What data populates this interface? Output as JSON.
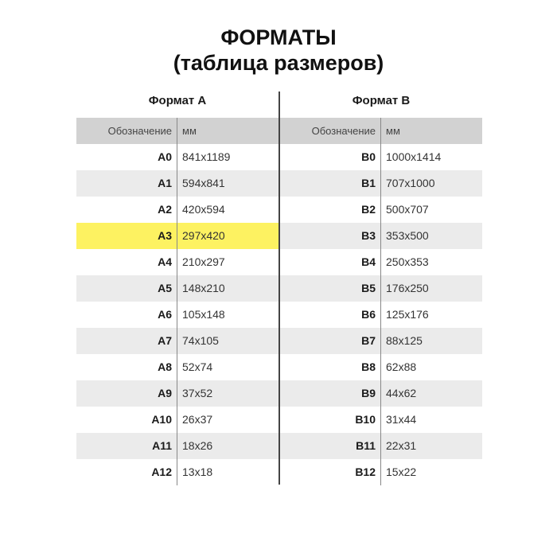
{
  "title_line1": "ФОРМАТЫ",
  "title_line2": "(таблица размеров)",
  "highlight_color": "#fdf261",
  "tables": [
    {
      "caption": "Формат А",
      "col1": "Обозначение",
      "col2": "мм",
      "rows": [
        [
          "A0",
          "841x1189"
        ],
        [
          "A1",
          "594x841"
        ],
        [
          "A2",
          "420x594"
        ],
        [
          "A3",
          "297x420"
        ],
        [
          "A4",
          "210x297"
        ],
        [
          "A5",
          "148x210"
        ],
        [
          "A6",
          "105x148"
        ],
        [
          "A7",
          "74x105"
        ],
        [
          "A8",
          "52x74"
        ],
        [
          "A9",
          "37x52"
        ],
        [
          "A10",
          "26x37"
        ],
        [
          "A11",
          "18x26"
        ],
        [
          "A12",
          "13x18"
        ]
      ],
      "highlighted": "A3"
    },
    {
      "caption": "Формат В",
      "col1": "Обозначение",
      "col2": "мм",
      "rows": [
        [
          "B0",
          "1000x1414"
        ],
        [
          "B1",
          "707x1000"
        ],
        [
          "B2",
          "500x707"
        ],
        [
          "B3",
          "353x500"
        ],
        [
          "B4",
          "250x353"
        ],
        [
          "B5",
          "176x250"
        ],
        [
          "B6",
          "125x176"
        ],
        [
          "B7",
          "88x125"
        ],
        [
          "B8",
          "62x88"
        ],
        [
          "B9",
          "44x62"
        ],
        [
          "B10",
          "31x44"
        ],
        [
          "B11",
          "22x31"
        ],
        [
          "B12",
          "15x22"
        ]
      ],
      "highlighted": ""
    }
  ]
}
